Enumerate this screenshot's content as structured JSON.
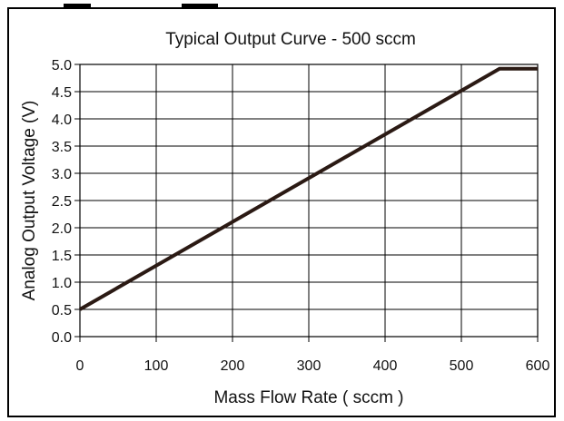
{
  "chart_data": {
    "type": "line",
    "title": "Typical Output Curve -  500  sccm",
    "xlabel": "Mass Flow Rate  ( sccm )",
    "ylabel": "Analog Output Voltage (V)",
    "xlim": [
      0,
      600
    ],
    "ylim": [
      0,
      5.0
    ],
    "x_ticks": [
      0,
      100,
      200,
      300,
      400,
      500,
      600
    ],
    "y_ticks": [
      0.0,
      0.5,
      1.0,
      1.5,
      2.0,
      2.5,
      3.0,
      3.5,
      4.0,
      4.5,
      5.0
    ],
    "x_tick_labels": [
      "0",
      "100",
      "200",
      "300",
      "400",
      "500",
      "600"
    ],
    "y_tick_labels": [
      "0.0",
      "0.5",
      "1.0",
      "1.5",
      "2.0",
      "2.5",
      "3.0",
      "3.5",
      "4.0",
      "4.5",
      "5.0"
    ],
    "grid": true,
    "series": [
      {
        "x": [
          0,
          550,
          600
        ],
        "y": [
          0.5,
          4.92,
          4.92
        ]
      }
    ],
    "colors": {
      "line": "#2b1a14",
      "grid": "#000000"
    }
  }
}
